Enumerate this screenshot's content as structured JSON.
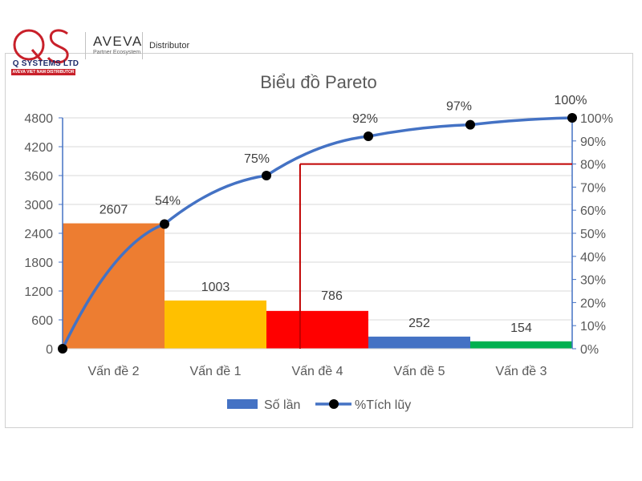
{
  "branding": {
    "logo_letters": "QS",
    "company_name": "Q SYSTEMS LTD",
    "company_tagline": "AVEVA VIET NAM DISTRIBUTOR",
    "partner_name": "AVEVA",
    "partner_sub": "Partner Ecosystem",
    "partner_role": "Distributor",
    "brand_red": "#c8202a",
    "brand_navy": "#1f2c6b"
  },
  "chart_data": {
    "type": "bar",
    "title": "Biểu đồ Pareto",
    "categories": [
      "Vấn đề 2",
      "Vấn đề 1",
      "Vấn đề 4",
      "Vấn đề 5",
      "Vấn đề 3"
    ],
    "series": [
      {
        "name": "Số lần",
        "type": "bar",
        "axis": "left",
        "values": [
          2607,
          1003,
          786,
          252,
          154
        ],
        "value_labels": [
          "2607",
          "1003",
          "786",
          "252",
          "154"
        ],
        "colors": [
          "#ed7d31",
          "#ffc000",
          "#ff0000",
          "#4472c4",
          "#00b050"
        ],
        "legend_color": "#4472c4"
      },
      {
        "name": "%Tích lũy",
        "type": "line",
        "axis": "right",
        "x": [
          0,
          1,
          2,
          3,
          4,
          5
        ],
        "values": [
          0,
          54,
          75,
          92,
          97,
          100
        ],
        "value_labels": [
          "",
          "54%",
          "75%",
          "92%",
          "97%",
          "100%"
        ],
        "line_color": "#4472c4",
        "marker_color": "#000000"
      }
    ],
    "y_left": {
      "min": 0,
      "max": 4800,
      "ticks": [
        0,
        600,
        1200,
        1800,
        2400,
        3000,
        3600,
        4200,
        4800
      ],
      "tick_labels": [
        "0",
        "600",
        "1200",
        "1800",
        "2400",
        "3000",
        "3600",
        "4200",
        "4800"
      ]
    },
    "y_right": {
      "min": 0,
      "max": 100,
      "ticks": [
        0,
        10,
        20,
        30,
        40,
        50,
        60,
        70,
        80,
        90,
        100
      ],
      "tick_labels": [
        "0%",
        "10%",
        "20%",
        "30%",
        "40%",
        "50%",
        "60%",
        "70%",
        "80%",
        "90%",
        "100%"
      ]
    },
    "reference_line": {
      "percent": 80,
      "x_category_position": 2.33,
      "color": "#c00000"
    },
    "grid": true,
    "legend_position": "bottom"
  }
}
